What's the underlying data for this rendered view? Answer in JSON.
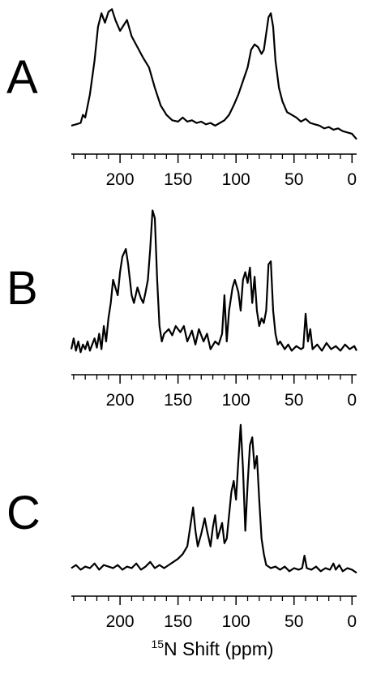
{
  "chart_data": [
    {
      "type": "line",
      "label": "A",
      "color": "#000000",
      "xlim": [
        242,
        -4
      ],
      "ylim": [
        0,
        1
      ],
      "xticks": [
        200,
        150,
        100,
        50,
        0
      ],
      "xminor_ticks": [
        240,
        230,
        220,
        210,
        190,
        180,
        170,
        160,
        140,
        130,
        120,
        110,
        90,
        80,
        70,
        60,
        40,
        30,
        20,
        10
      ],
      "x": [
        242,
        238,
        234,
        232,
        230,
        226,
        222,
        219,
        216,
        213,
        210,
        207,
        204,
        200,
        197,
        194,
        190,
        185,
        180,
        175,
        170,
        165,
        160,
        155,
        150,
        146,
        142,
        138,
        134,
        130,
        126,
        122,
        118,
        114,
        110,
        106,
        102,
        98,
        94,
        90,
        87,
        84,
        81,
        78,
        76,
        74,
        72,
        70,
        68,
        66,
        63,
        60,
        56,
        52,
        48,
        44,
        40,
        36,
        32,
        28,
        24,
        20,
        16,
        12,
        8,
        4,
        0,
        -4
      ],
      "values": [
        0.12,
        0.13,
        0.14,
        0.2,
        0.18,
        0.35,
        0.6,
        0.85,
        0.95,
        0.88,
        0.96,
        0.98,
        0.9,
        0.82,
        0.86,
        0.9,
        0.78,
        0.7,
        0.62,
        0.55,
        0.4,
        0.27,
        0.2,
        0.16,
        0.15,
        0.18,
        0.15,
        0.16,
        0.14,
        0.15,
        0.13,
        0.14,
        0.12,
        0.14,
        0.16,
        0.2,
        0.27,
        0.35,
        0.45,
        0.55,
        0.68,
        0.72,
        0.7,
        0.65,
        0.68,
        0.8,
        0.92,
        0.95,
        0.85,
        0.6,
        0.4,
        0.3,
        0.22,
        0.2,
        0.18,
        0.15,
        0.17,
        0.14,
        0.13,
        0.12,
        0.1,
        0.11,
        0.09,
        0.1,
        0.08,
        0.07,
        0.06,
        0.02
      ]
    },
    {
      "type": "line",
      "label": "B",
      "color": "#000000",
      "xlim": [
        242,
        -4
      ],
      "ylim": [
        0,
        1
      ],
      "xticks": [
        200,
        150,
        100,
        50,
        0
      ],
      "xminor_ticks": [
        240,
        230,
        220,
        210,
        190,
        180,
        170,
        160,
        140,
        130,
        120,
        110,
        90,
        80,
        70,
        60,
        40,
        30,
        20,
        10
      ],
      "x": [
        242,
        240,
        238,
        236,
        234,
        232,
        230,
        228,
        226,
        224,
        222,
        220,
        218,
        216,
        214,
        212,
        210,
        208,
        206,
        204,
        202,
        200,
        198,
        195,
        193,
        190,
        188,
        185,
        182,
        180,
        178,
        176,
        174,
        172,
        170,
        168,
        166,
        164,
        162,
        158,
        155,
        152,
        148,
        145,
        142,
        138,
        135,
        132,
        128,
        125,
        122,
        118,
        115,
        112,
        110,
        108,
        106,
        103,
        101,
        98,
        96,
        94,
        92,
        90,
        88,
        86,
        84,
        82,
        80,
        78,
        76,
        74,
        72,
        70,
        68,
        66,
        64,
        62,
        58,
        55,
        52,
        48,
        44,
        42,
        40,
        38,
        36,
        34,
        30,
        26,
        22,
        18,
        14,
        10,
        6,
        2,
        -2,
        -4
      ],
      "values": [
        0.05,
        0.12,
        0.04,
        0.1,
        0.03,
        0.08,
        0.05,
        0.1,
        0.04,
        0.08,
        0.12,
        0.06,
        0.15,
        0.05,
        0.2,
        0.1,
        0.25,
        0.35,
        0.5,
        0.45,
        0.4,
        0.55,
        0.65,
        0.7,
        0.6,
        0.4,
        0.35,
        0.45,
        0.38,
        0.35,
        0.42,
        0.5,
        0.7,
        0.95,
        0.9,
        0.5,
        0.2,
        0.1,
        0.15,
        0.18,
        0.14,
        0.2,
        0.16,
        0.2,
        0.1,
        0.17,
        0.08,
        0.18,
        0.1,
        0.15,
        0.05,
        0.1,
        0.08,
        0.15,
        0.4,
        0.1,
        0.3,
        0.45,
        0.5,
        0.42,
        0.3,
        0.5,
        0.55,
        0.48,
        0.58,
        0.35,
        0.52,
        0.3,
        0.2,
        0.25,
        0.22,
        0.3,
        0.6,
        0.62,
        0.3,
        0.15,
        0.08,
        0.1,
        0.05,
        0.08,
        0.04,
        0.07,
        0.05,
        0.06,
        0.28,
        0.1,
        0.18,
        0.05,
        0.08,
        0.04,
        0.09,
        0.05,
        0.07,
        0.04,
        0.08,
        0.05,
        0.07,
        0.04
      ]
    },
    {
      "type": "line",
      "label": "C",
      "color": "#000000",
      "xlim": [
        242,
        -4
      ],
      "ylim": [
        0,
        1
      ],
      "xticks": [
        200,
        150,
        100,
        50,
        0
      ],
      "xminor_ticks": [
        240,
        230,
        220,
        210,
        190,
        180,
        170,
        160,
        140,
        130,
        120,
        110,
        90,
        80,
        70,
        60,
        40,
        30,
        20,
        10
      ],
      "xlabel_superscript": "15",
      "xlabel": "N Shift (ppm)",
      "x": [
        242,
        238,
        234,
        230,
        226,
        222,
        218,
        214,
        210,
        206,
        202,
        198,
        194,
        190,
        186,
        182,
        178,
        174,
        170,
        166,
        162,
        158,
        154,
        150,
        146,
        142,
        139,
        137,
        135,
        133,
        130,
        127,
        125,
        122,
        120,
        118,
        116,
        114,
        112,
        110,
        108,
        106,
        104,
        102,
        100,
        98,
        96,
        94,
        92,
        90,
        88,
        86,
        84,
        82,
        80,
        78,
        76,
        74,
        70,
        66,
        62,
        58,
        54,
        50,
        46,
        43,
        41,
        39,
        35,
        31,
        27,
        23,
        19,
        16,
        14,
        11,
        8,
        4,
        0,
        -4
      ],
      "values": [
        0.06,
        0.08,
        0.05,
        0.07,
        0.06,
        0.09,
        0.05,
        0.08,
        0.07,
        0.06,
        0.08,
        0.05,
        0.07,
        0.06,
        0.09,
        0.05,
        0.07,
        0.1,
        0.06,
        0.08,
        0.06,
        0.08,
        0.1,
        0.12,
        0.15,
        0.2,
        0.35,
        0.45,
        0.3,
        0.2,
        0.28,
        0.38,
        0.3,
        0.2,
        0.32,
        0.4,
        0.25,
        0.3,
        0.35,
        0.22,
        0.25,
        0.4,
        0.55,
        0.62,
        0.5,
        0.75,
        0.98,
        0.7,
        0.3,
        0.6,
        0.85,
        0.9,
        0.7,
        0.78,
        0.5,
        0.25,
        0.15,
        0.08,
        0.06,
        0.07,
        0.05,
        0.07,
        0.04,
        0.06,
        0.05,
        0.06,
        0.14,
        0.06,
        0.05,
        0.07,
        0.04,
        0.06,
        0.05,
        0.09,
        0.05,
        0.08,
        0.04,
        0.06,
        0.05,
        0.03
      ]
    }
  ]
}
